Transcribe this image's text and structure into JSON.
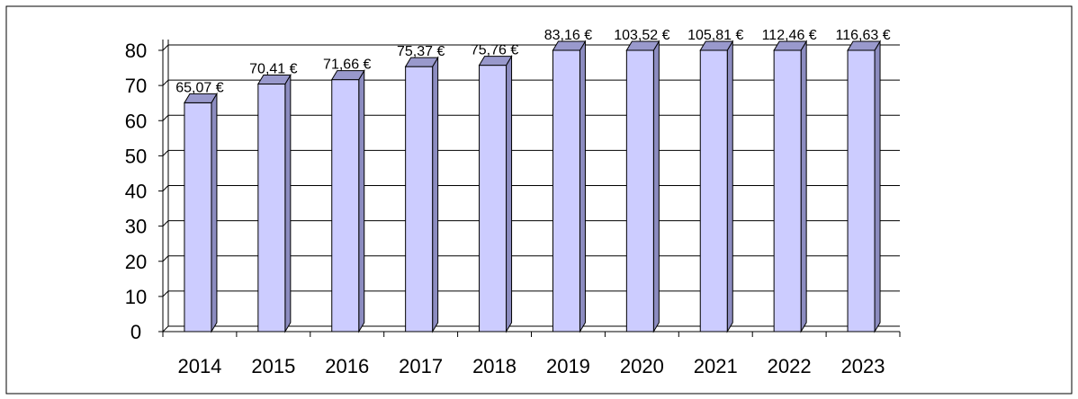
{
  "chart_data": {
    "type": "bar",
    "title": "",
    "xlabel": "",
    "ylabel": "",
    "categories": [
      "2014",
      "2015",
      "2016",
      "2017",
      "2018",
      "2019",
      "2020",
      "2021",
      "2022",
      "2023"
    ],
    "values": [
      65.07,
      70.41,
      71.66,
      75.37,
      75.76,
      83.16,
      103.52,
      105.81,
      112.46,
      116.63
    ],
    "value_labels": [
      "65,07 €",
      "70,41 €",
      "71,66 €",
      "75,37 €",
      "75,76 €",
      "83,16 €",
      "103,52 €",
      "105,81 €",
      "112,46 €",
      "116,63 €"
    ],
    "ylim": [
      0,
      80
    ],
    "yticks": [
      "0",
      "10",
      "20",
      "30",
      "40",
      "50",
      "60",
      "70",
      "80"
    ],
    "grid": true,
    "legend": "none",
    "style": "3d-column",
    "colors": {
      "bar_front": "#ccccff",
      "bar_top": "#9999cc",
      "bar_side": "#8c8cc0",
      "outline": "#000000",
      "grid": "#000000"
    }
  }
}
